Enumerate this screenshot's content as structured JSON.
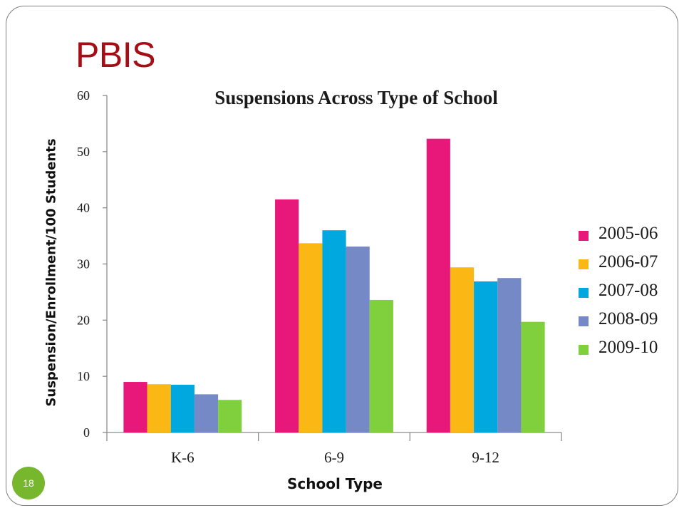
{
  "slide": {
    "title": "PBIS",
    "page_number": "18"
  },
  "colors": {
    "title": "#a50e14",
    "page_badge": "#77b72e"
  },
  "chart_data": {
    "type": "bar",
    "title": "Suspensions Across Type of School",
    "xlabel": "School Type",
    "ylabel": "Suspension/Enrollment/100 Students",
    "categories": [
      "K-6",
      "6-9",
      "9-12"
    ],
    "ylim": [
      0,
      60
    ],
    "yticks": [
      0,
      10,
      20,
      30,
      40,
      50,
      60
    ],
    "grid": false,
    "legend_position": "right",
    "series": [
      {
        "name": "2005-06",
        "color": "#e8177a",
        "values": [
          9.0,
          41.5,
          52.3
        ]
      },
      {
        "name": "2006-07",
        "color": "#fbb714",
        "values": [
          8.6,
          33.7,
          29.4
        ]
      },
      {
        "name": "2007-08",
        "color": "#00a8df",
        "values": [
          8.5,
          36.0,
          26.9
        ]
      },
      {
        "name": "2008-09",
        "color": "#7589c7",
        "values": [
          6.8,
          33.1,
          27.5
        ]
      },
      {
        "name": "2009-10",
        "color": "#80cf3c",
        "values": [
          5.8,
          23.6,
          19.7
        ]
      }
    ]
  }
}
